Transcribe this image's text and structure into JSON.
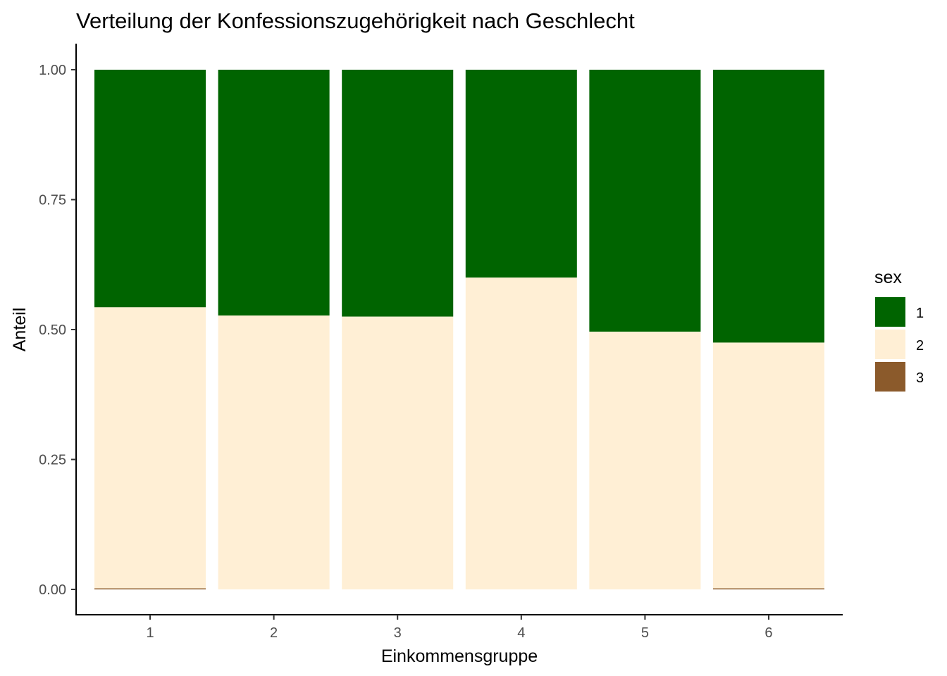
{
  "chart_data": {
    "type": "bar",
    "stacked": true,
    "title": "Verteilung der Konfessionszugehörigkeit nach Geschlecht",
    "xlabel": "Einkommensgruppe",
    "ylabel": "Anteil",
    "ylim": [
      0,
      1
    ],
    "yticks": [
      "0.00",
      "0.25",
      "0.50",
      "0.75",
      "1.00"
    ],
    "categories": [
      "1",
      "2",
      "3",
      "4",
      "5",
      "6"
    ],
    "grid": false,
    "legend": {
      "title": "sex",
      "position": "right"
    },
    "series": [
      {
        "name": "1",
        "color": "#006400",
        "values": [
          0.457,
          0.473,
          0.475,
          0.4,
          0.504,
          0.525
        ]
      },
      {
        "name": "2",
        "color": "#FFEFD5",
        "values": [
          0.541,
          0.527,
          0.525,
          0.6,
          0.496,
          0.473
        ]
      },
      {
        "name": "3",
        "color": "#8B5A2B",
        "values": [
          0.002,
          0.0,
          0.0,
          0.0,
          0.0,
          0.002
        ]
      }
    ]
  }
}
